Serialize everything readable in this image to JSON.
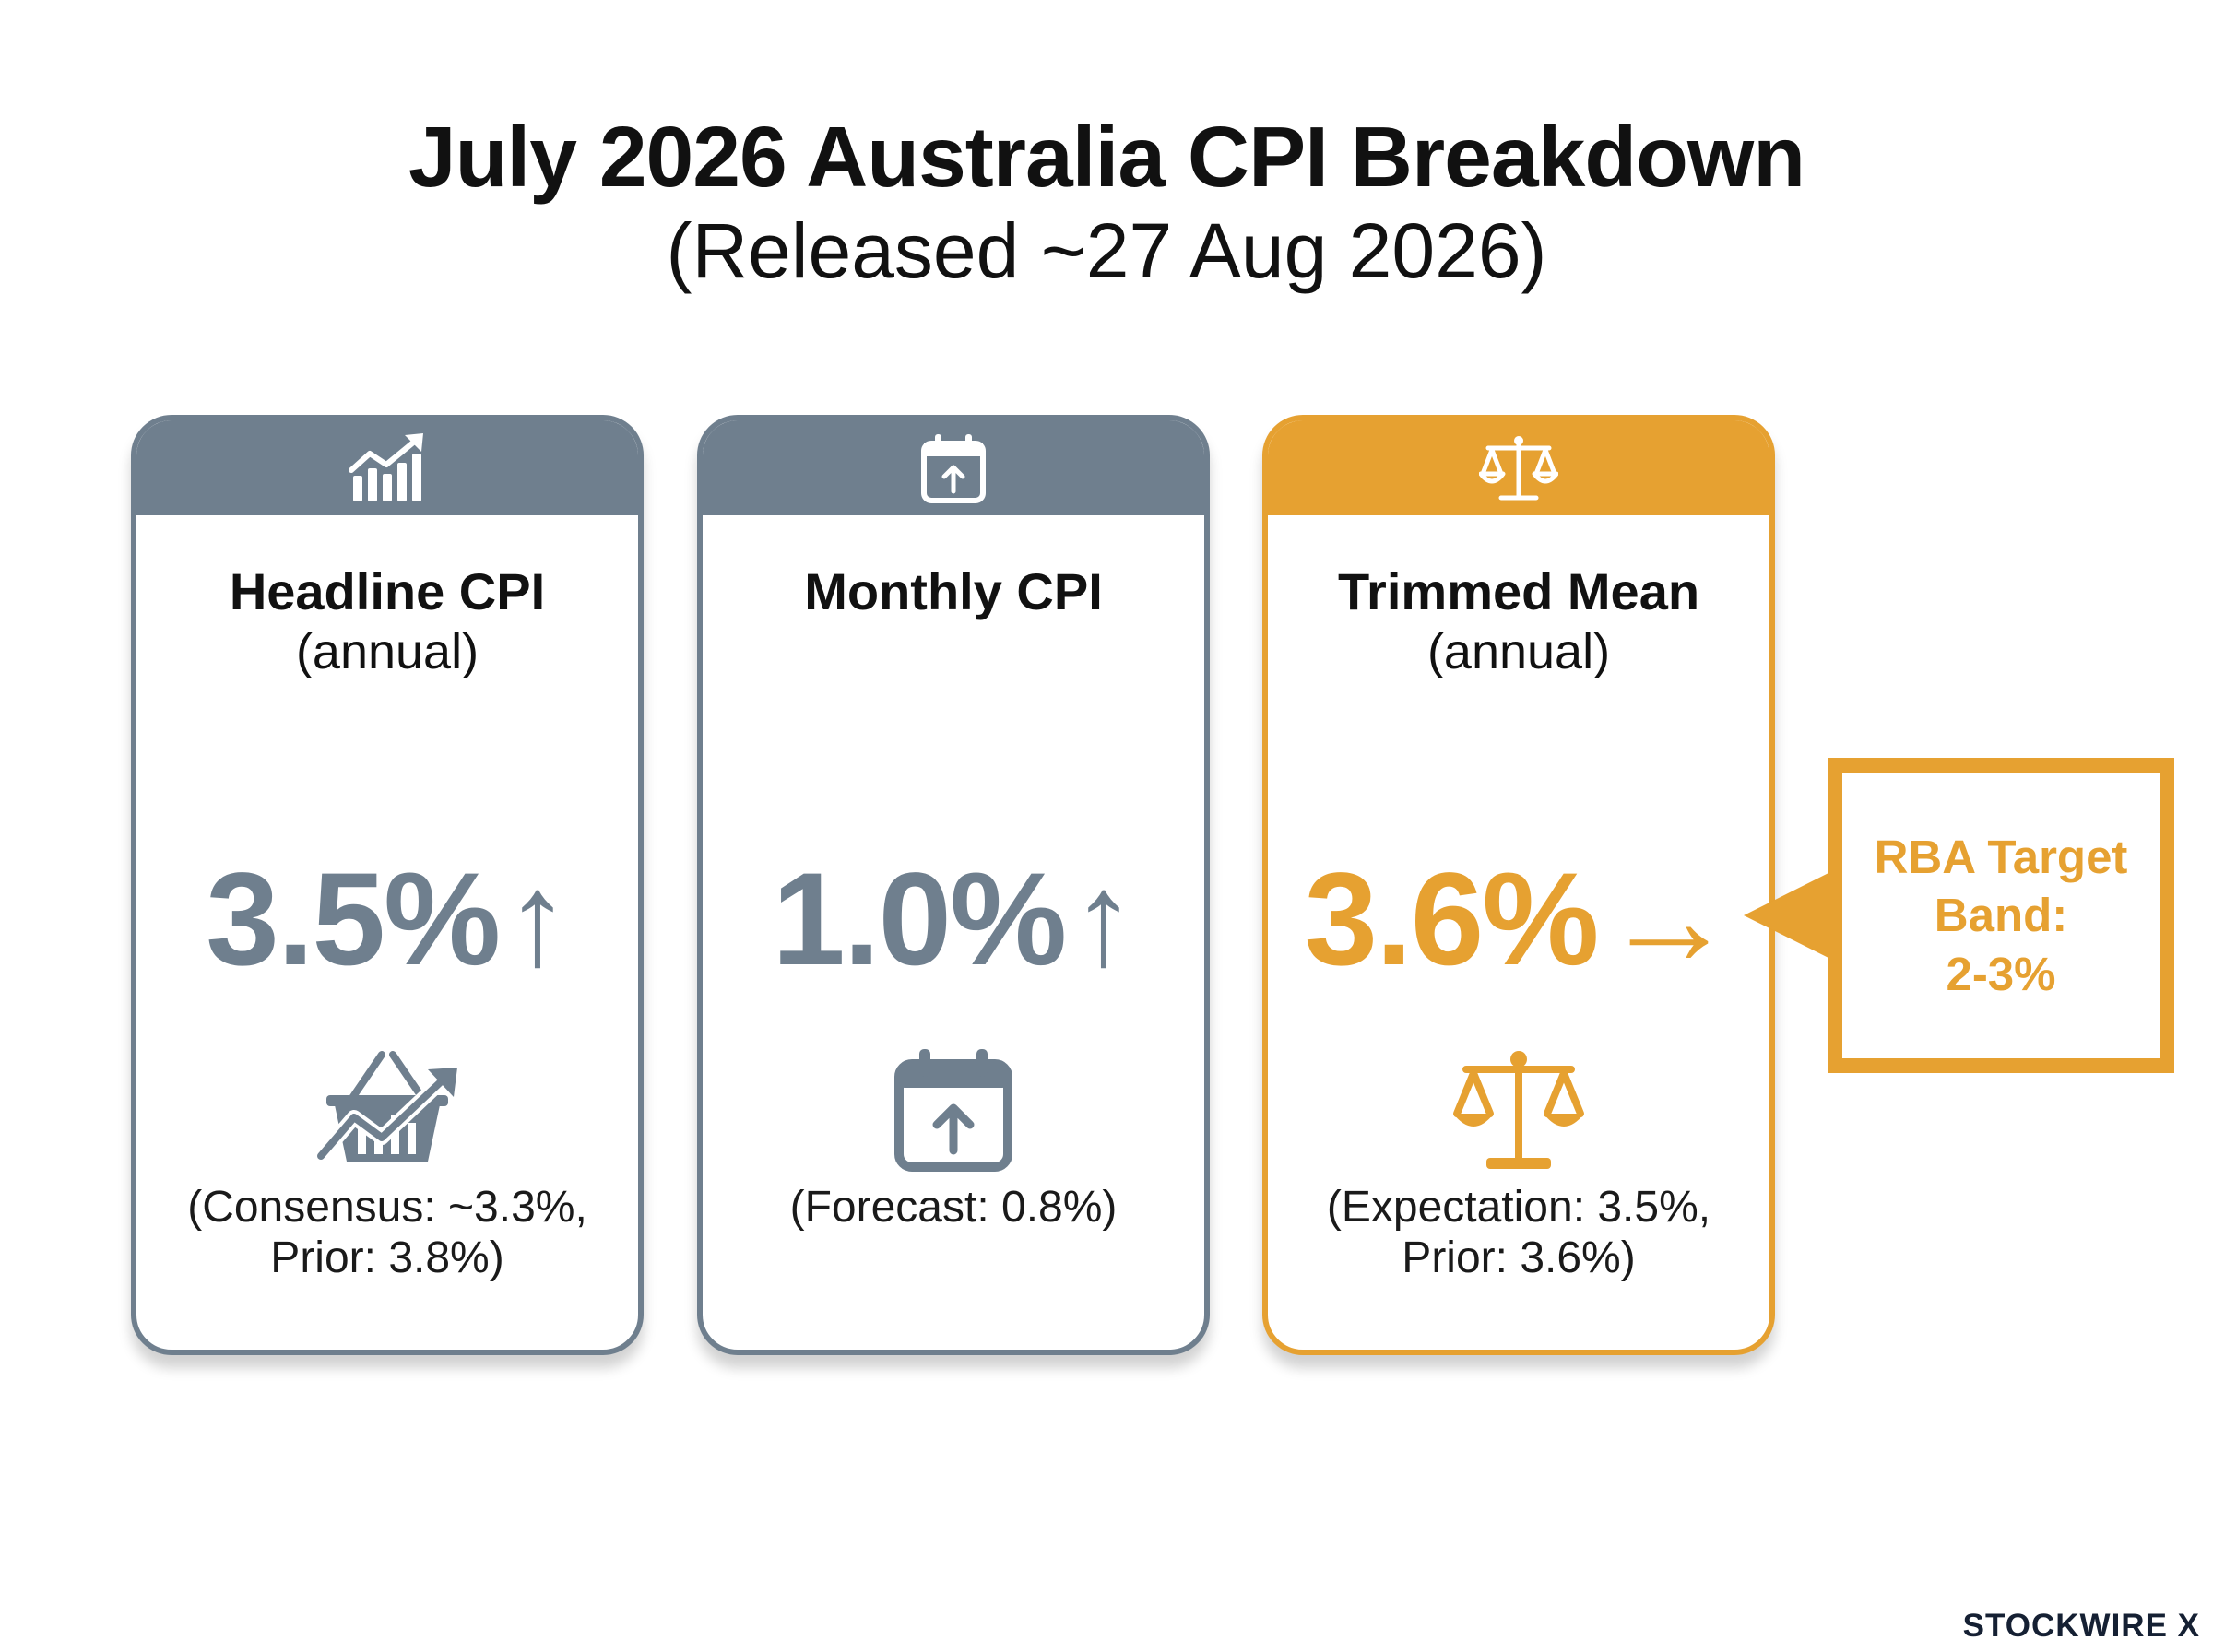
{
  "header": {
    "title": "July 2026 Australia CPI Breakdown",
    "subtitle": "(Released ~27 Aug 2026)"
  },
  "colors": {
    "slate": "#6f7f8e",
    "gold": "#e6a131"
  },
  "cards": [
    {
      "header_icon": "growth-chart-icon",
      "title": "Headline CPI",
      "subtitle": "(annual)",
      "value": "3.5%",
      "arrow": "↑",
      "body_icon": "shopping-basket-trend-icon",
      "note_line1": "(Consensus: ~3.3%,",
      "note_line2": "Prior: 3.8%)"
    },
    {
      "header_icon": "calendar-up-icon",
      "title": "Monthly CPI",
      "value": "1.0%",
      "arrow": "↑",
      "body_icon": "calendar-up-icon",
      "note_line1": "(Forecast: 0.8%)"
    },
    {
      "header_icon": "balance-scale-icon",
      "title": "Trimmed Mean",
      "subtitle": "(annual)",
      "value": "3.6%",
      "arrow": "→",
      "body_icon": "balance-scale-icon",
      "note_line1": "(Expectation: 3.5%,",
      "note_line2": "Prior: 3.6%)"
    }
  ],
  "callout": {
    "line1": "RBA Target",
    "line2": "Band:",
    "line3": "2-3%"
  },
  "brand": {
    "text": "STOCKWIRE X"
  }
}
